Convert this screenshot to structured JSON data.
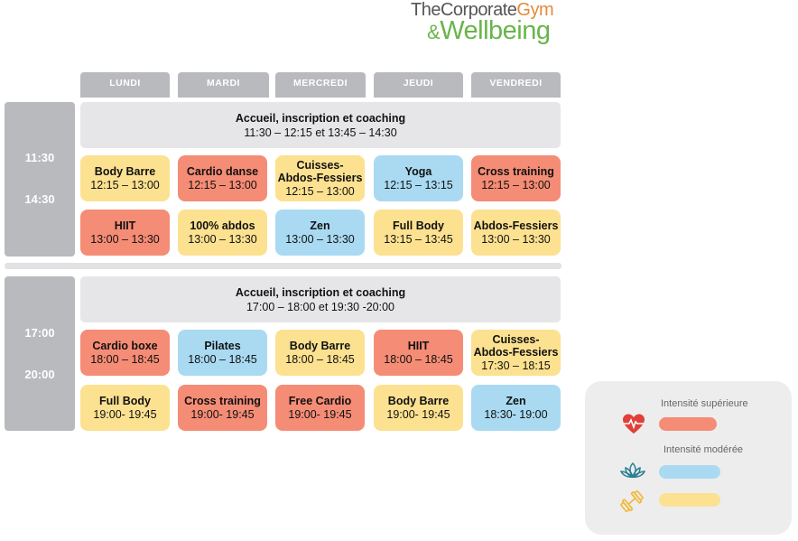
{
  "brand": {
    "line1_a": "TheCorporate",
    "line1_b": "Gym",
    "line2_amp": "&",
    "line2_b": "Wellbeing"
  },
  "days": [
    "LUNDI",
    "MARDI",
    "MERCREDI",
    "JEUDI",
    "VENDREDI"
  ],
  "colors": {
    "high": "#f58c75",
    "moderate": "#a9daf2",
    "low": "#fce190",
    "header": "#b9babe",
    "banner": "#e6e6e8"
  },
  "blocks": [
    {
      "time_start": "11:30",
      "time_end": "14:30",
      "banner_title": "Accueil, inscription et coaching",
      "banner_hours": "11:30 – 12:15 et 13:45 – 14:30",
      "rows": [
        [
          {
            "name": "Body Barre",
            "hours": "12:15 – 13:00",
            "intensity": "low"
          },
          {
            "name": "Cardio danse",
            "hours": "12:15 – 13:00",
            "intensity": "high"
          },
          {
            "name": "Cuisses-Abdos-Fessiers",
            "hours": "12:15 – 13:00",
            "intensity": "low"
          },
          {
            "name": "Yoga",
            "hours": "12:15 – 13:15",
            "intensity": "moderate"
          },
          {
            "name": "Cross training",
            "hours": "12:15 – 13:00",
            "intensity": "high"
          }
        ],
        [
          {
            "name": "HIIT",
            "hours": "13:00 – 13:30",
            "intensity": "high"
          },
          {
            "name": "100% abdos",
            "hours": "13:00 – 13:30",
            "intensity": "low"
          },
          {
            "name": "Zen",
            "hours": "13:00 – 13:30",
            "intensity": "moderate"
          },
          {
            "name": "Full Body",
            "hours": "13:15 – 13:45",
            "intensity": "low"
          },
          {
            "name": "Abdos-Fessiers",
            "hours": "13:00 – 13:30",
            "intensity": "low"
          }
        ]
      ]
    },
    {
      "time_start": "17:00",
      "time_end": "20:00",
      "banner_title": "Accueil, inscription et coaching",
      "banner_hours": "17:00 – 18:00 et 19:30 -20:00",
      "rows": [
        [
          {
            "name": "Cardio boxe",
            "hours": "18:00 – 18:45",
            "intensity": "high"
          },
          {
            "name": "Pilates",
            "hours": "18:00 – 18:45",
            "intensity": "moderate"
          },
          {
            "name": "Body Barre",
            "hours": "18:00 – 18:45",
            "intensity": "low"
          },
          {
            "name": "HIIT",
            "hours": "18:00 – 18:45",
            "intensity": "high"
          },
          {
            "name": "Cuisses-Abdos-Fessiers",
            "hours": "17:30 – 18:15",
            "intensity": "low"
          }
        ],
        [
          {
            "name": "Full Body",
            "hours": "19:00- 19:45",
            "intensity": "low"
          },
          {
            "name": "Cross training",
            "hours": "19:00- 19:45",
            "intensity": "high"
          },
          {
            "name": "Free Cardio",
            "hours": "19:00- 19:45",
            "intensity": "high"
          },
          {
            "name": "Body Barre",
            "hours": "19:00- 19:45",
            "intensity": "low"
          },
          {
            "name": "Zen",
            "hours": "18:30- 19:00",
            "intensity": "moderate"
          }
        ]
      ]
    }
  ],
  "legend": {
    "high_label": "Intensité supérieure",
    "moderate_label": "Intensité modérée",
    "icons": [
      "heart-pulse-icon",
      "lotus-icon",
      "dumbbell-icon"
    ]
  }
}
